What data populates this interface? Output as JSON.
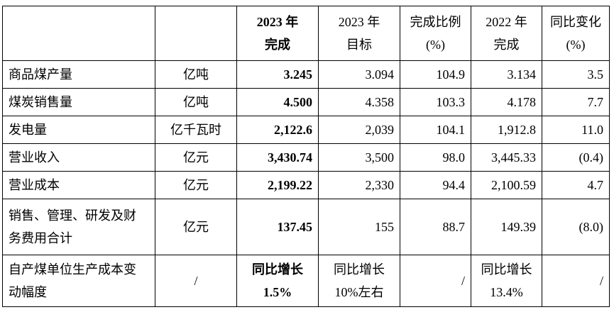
{
  "table": {
    "header": [
      "",
      "",
      [
        "2023 年",
        "完成"
      ],
      [
        "2023 年",
        "目标"
      ],
      [
        "完成比例",
        "(%)"
      ],
      [
        "2022 年",
        "完成"
      ],
      [
        "同比变化",
        "(%)"
      ]
    ],
    "rows": [
      [
        "商品煤产量",
        "亿吨",
        "3.245",
        "3.094",
        "104.9",
        "3.134",
        "3.5"
      ],
      [
        "煤炭销售量",
        "亿吨",
        "4.500",
        "4.358",
        "103.3",
        "4.178",
        "7.7"
      ],
      [
        "发电量",
        "亿千瓦时",
        "2,122.6",
        "2,039",
        "104.1",
        "1,912.8",
        "11.0"
      ],
      [
        "营业收入",
        "亿元",
        "3,430.74",
        "3,500",
        "98.0",
        "3,445.33",
        "(0.4)"
      ],
      [
        "营业成本",
        "亿元",
        "2,199.22",
        "2,330",
        "94.4",
        "2,100.59",
        "4.7"
      ],
      [
        [
          "销售、管理、研发及财",
          "务费用合计"
        ],
        "亿元",
        "137.45",
        "155",
        "88.7",
        "149.39",
        "(8.0)"
      ],
      [
        [
          "自产煤单位生产成本变",
          "动幅度"
        ],
        "/",
        [
          "同比增长",
          "1.5%"
        ],
        [
          "同比增长",
          "10%左右"
        ],
        "/",
        [
          "同比增长",
          "13.4%"
        ],
        "/"
      ]
    ]
  }
}
